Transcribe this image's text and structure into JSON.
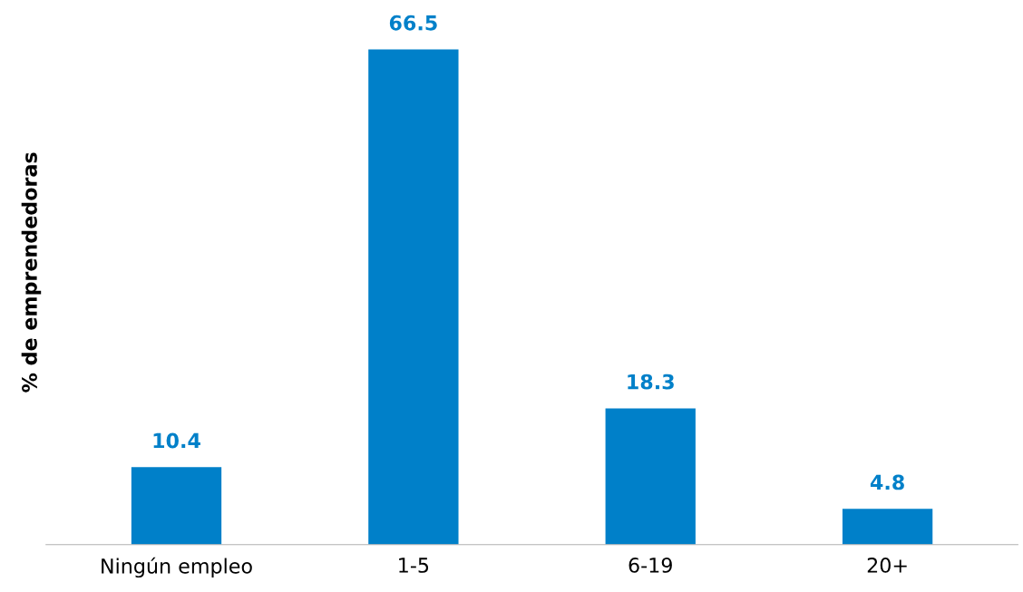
{
  "chart_data": {
    "type": "bar",
    "ylabel": "% de emprendedoras",
    "categories": [
      "Ningún empleo",
      "1-5",
      "6-19",
      "20+"
    ],
    "values": [
      10.4,
      66.5,
      18.3,
      4.8
    ],
    "color": "#0080c9",
    "data_labels": true,
    "grid": false,
    "tick_labels": "x"
  }
}
